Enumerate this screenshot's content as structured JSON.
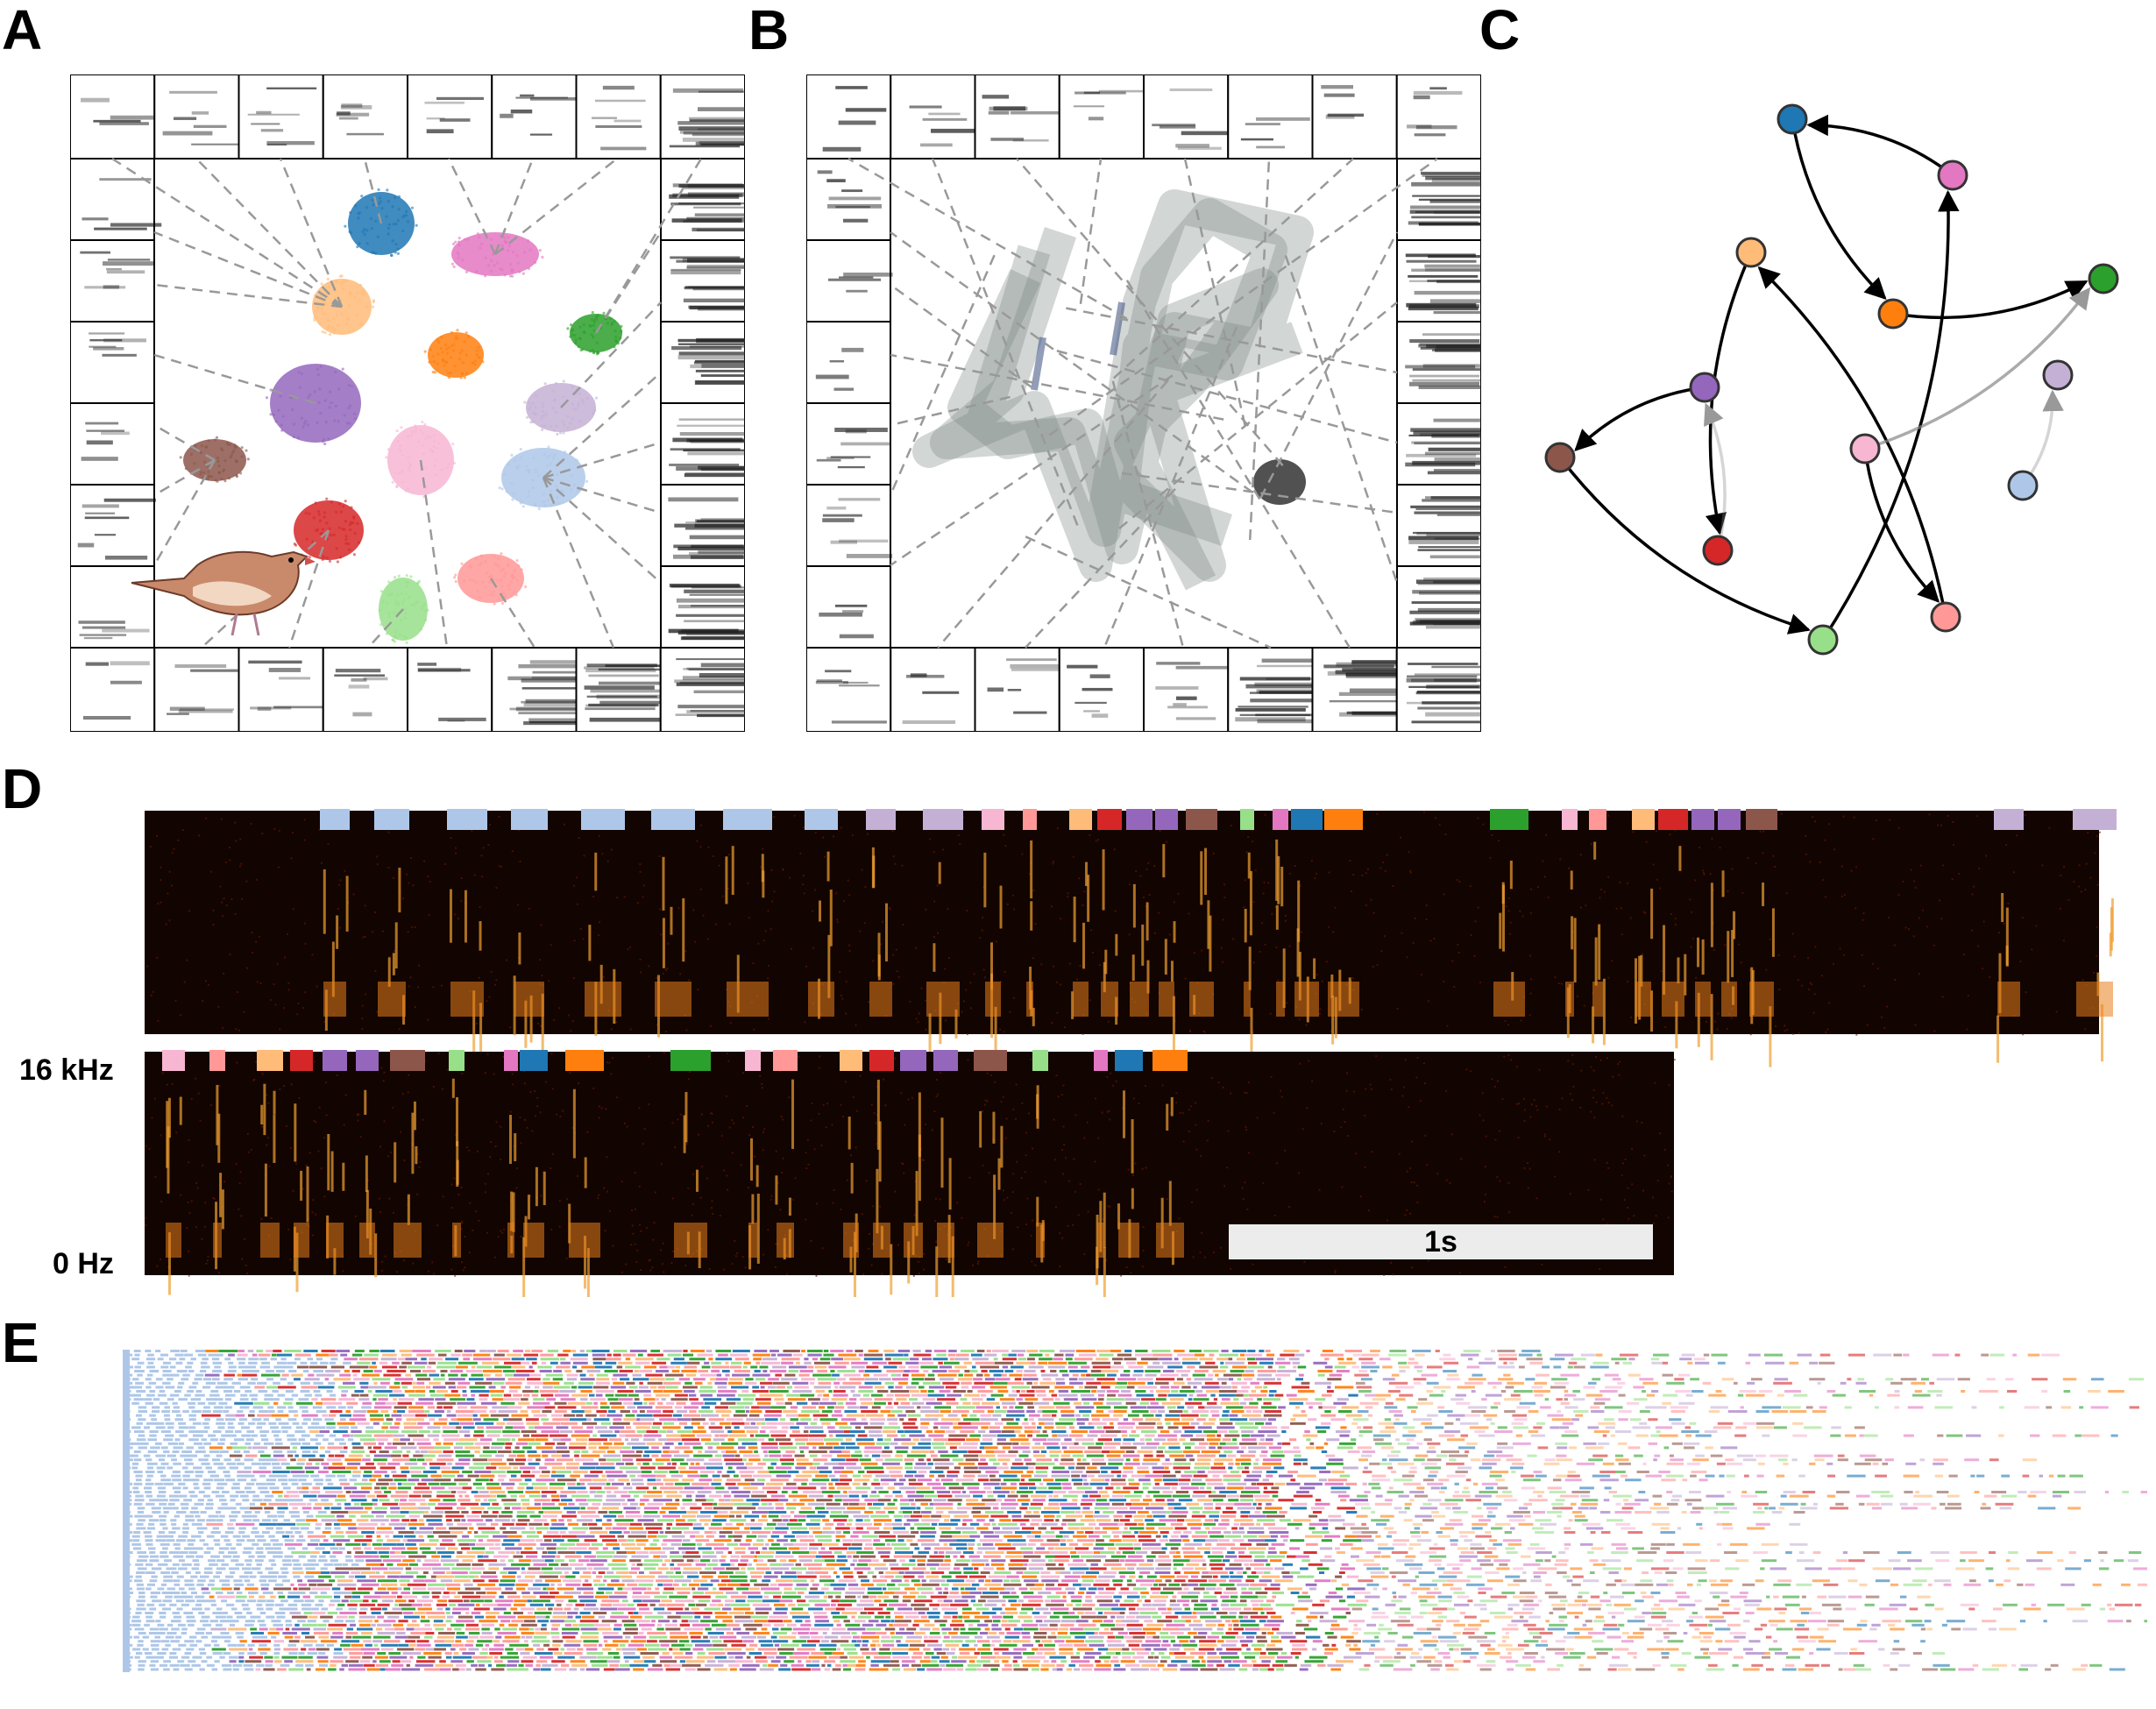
{
  "panels": {
    "a": {
      "letter": "A"
    },
    "b": {
      "letter": "B"
    },
    "c": {
      "letter": "C"
    },
    "d": {
      "letter": "D",
      "freq_high": "16 kHz",
      "freq_low": "0 Hz",
      "scale_bar": "1s"
    },
    "e": {
      "letter": "E"
    }
  },
  "palette": {
    "blue": "#1f77b4",
    "pink": "#e377c2",
    "peach": "#ffbb78",
    "green": "#2ca02c",
    "orange": "#ff7f0e",
    "purple": "#9467bd",
    "lavender": "#c5b0d5",
    "brown": "#8c564b",
    "lightpink": "#f7b6d2",
    "lightblue": "#aec7e8",
    "red": "#d62728",
    "salmon": "#ff9896",
    "lightgreen": "#98df8a"
  },
  "graph_edges": [
    [
      "pink",
      "blue"
    ],
    [
      "blue",
      "orange"
    ],
    [
      "orange",
      "green"
    ],
    [
      "peach",
      "red"
    ],
    [
      "purple",
      "brown"
    ],
    [
      "brown",
      "lightgreen"
    ],
    [
      "lightgreen",
      "pink"
    ],
    [
      "lightpink",
      "salmon"
    ],
    [
      "salmon",
      "peach"
    ],
    [
      "lightpink",
      "green"
    ],
    [
      "red",
      "purple"
    ],
    [
      "lightblue",
      "lavender"
    ]
  ],
  "graph_edge_strength": [
    1,
    1,
    1,
    1,
    1,
    1,
    1,
    1,
    1,
    0.7,
    0.35,
    0.35
  ]
}
